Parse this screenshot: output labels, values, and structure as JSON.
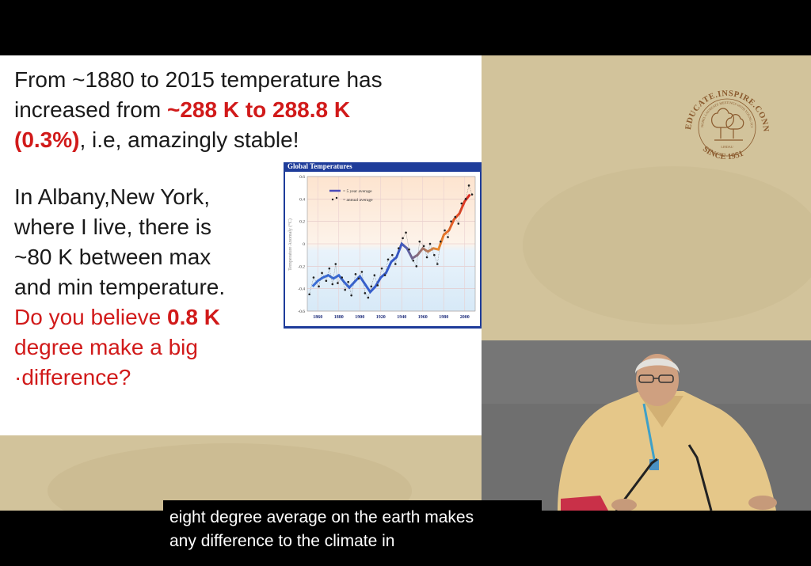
{
  "slide": {
    "p1_a": "From ~1880 to 2015 temperature has\nincreased from ",
    "p1_b": "~288 K to 288.8 K\n(0.3%)",
    "p1_c": ", i.e,  amazingly stable!",
    "p2_a": "In Albany,New York,\nwhere I live, there is\n~80 K between max\nand min temperature.\n",
    "p2_b": "Do you believe ",
    "p2_c": "0.8 K",
    "p2_d": "\ndegree make a big\n·difference?"
  },
  "seal": {
    "arc_top": "EDUCATE.INSPIRE.CONNECT.",
    "inner_ring": "NOBEL LAUREATE MEETINGS WITH YOUNG SCIENTISTS",
    "lindau": "LINDAU",
    "since": "SINCE 1951"
  },
  "subtitle": {
    "line1": "eight degree average on the earth makes",
    "line2": "any difference to the climate in"
  },
  "colors": {
    "slide_red": "#d11a1a",
    "stage_beige": "#d2c39b",
    "chart_frame_blue": "#1e3c9a",
    "seal_brown": "#8a5a2e"
  },
  "chart_data": {
    "type": "line",
    "title": "Global Temperatures",
    "ylabel": "Temperature Anomaly (°C)",
    "xlabel": "",
    "xlim": [
      1850,
      2010
    ],
    "ylim": [
      -0.6,
      0.6
    ],
    "x_ticks": [
      1860,
      1880,
      1900,
      1920,
      1940,
      1960,
      1980,
      2000
    ],
    "y_ticks": [
      -0.6,
      -0.4,
      -0.2,
      0,
      0.2,
      0.4,
      0.6
    ],
    "y_tick_labels": [
      "-0.6",
      "-0.4",
      "-0.2",
      "0",
      "0.2",
      "0.4",
      "0.6"
    ],
    "legend_position": "top-left",
    "series": [
      {
        "name": "5 year average",
        "style": "line",
        "x": [
          1855,
          1860,
          1865,
          1870,
          1875,
          1880,
          1885,
          1890,
          1895,
          1900,
          1905,
          1910,
          1915,
          1920,
          1925,
          1930,
          1935,
          1940,
          1945,
          1950,
          1955,
          1960,
          1965,
          1970,
          1975,
          1980,
          1985,
          1990,
          1995,
          2000,
          2005
        ],
        "values": [
          -0.38,
          -0.33,
          -0.3,
          -0.28,
          -0.31,
          -0.28,
          -0.34,
          -0.39,
          -0.34,
          -0.29,
          -0.36,
          -0.43,
          -0.38,
          -0.3,
          -0.26,
          -0.16,
          -0.12,
          0.0,
          -0.04,
          -0.13,
          -0.1,
          -0.04,
          -0.07,
          -0.04,
          -0.05,
          0.08,
          0.12,
          0.22,
          0.27,
          0.38,
          0.44
        ]
      },
      {
        "name": "annual average",
        "style": "dots",
        "x": [
          1852,
          1856,
          1861,
          1864,
          1868,
          1871,
          1874,
          1877,
          1879,
          1883,
          1886,
          1889,
          1892,
          1896,
          1899,
          1902,
          1905,
          1908,
          1911,
          1914,
          1917,
          1921,
          1924,
          1927,
          1931,
          1934,
          1937,
          1941,
          1944,
          1947,
          1951,
          1954,
          1957,
          1961,
          1964,
          1967,
          1971,
          1974,
          1977,
          1981,
          1984,
          1987,
          1991,
          1994,
          1997,
          2001,
          2004,
          2007
        ],
        "values": [
          -0.45,
          -0.3,
          -0.38,
          -0.26,
          -0.33,
          -0.22,
          -0.36,
          -0.18,
          -0.35,
          -0.3,
          -0.41,
          -0.34,
          -0.46,
          -0.27,
          -0.31,
          -0.25,
          -0.44,
          -0.48,
          -0.38,
          -0.28,
          -0.37,
          -0.22,
          -0.28,
          -0.14,
          -0.1,
          -0.18,
          -0.04,
          0.05,
          0.1,
          -0.05,
          -0.15,
          -0.2,
          0.02,
          -0.02,
          -0.12,
          0.0,
          -0.1,
          -0.18,
          0.02,
          0.12,
          0.06,
          0.2,
          0.24,
          0.18,
          0.36,
          0.4,
          0.52,
          0.44
        ]
      }
    ]
  }
}
